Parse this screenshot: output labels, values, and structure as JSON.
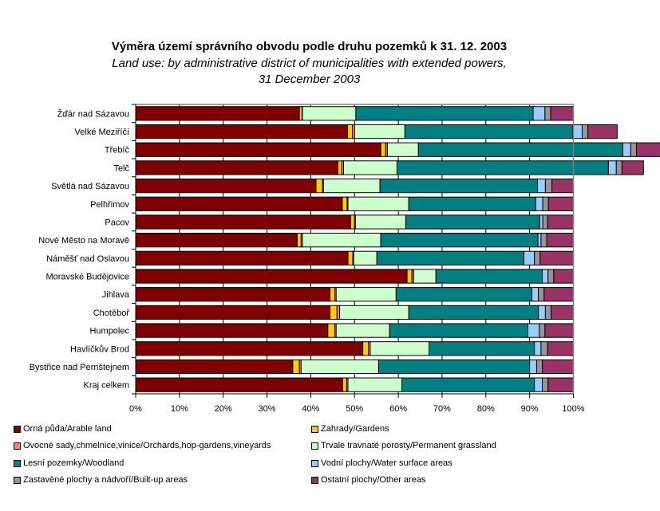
{
  "chart_data": {
    "type": "bar",
    "orientation": "horizontal",
    "stacked": "percent",
    "title": "Výměra území správního obvodu podle druhu pozemků k 31. 12. 2003",
    "subtitle": [
      "Land use: by administrative district of municipalities with extended powers,",
      "31 December 2003"
    ],
    "xlabel": "",
    "ylabel": "",
    "xlim": [
      0,
      100
    ],
    "x_ticks": [
      "0%",
      "10%",
      "20%",
      "30%",
      "40%",
      "50%",
      "60%",
      "70%",
      "80%",
      "90%",
      "100%"
    ],
    "grid": true,
    "legend_position": "bottom",
    "categories": [
      "Žďár nad Sázavou",
      "Velké Meziříčí",
      "Třebíč",
      "Telč",
      "Světlá nad Sázavou",
      "Pelhřimov",
      "Pacov",
      "Nové Město na Moravě",
      "Náměšť nad Oslavou",
      "Moravské Budějovice",
      "Jihlava",
      "Chotěboř",
      "Humpolec",
      "Havlíčkův Brod",
      "Bystřice nad Pernštejnem",
      "Kraj celkem"
    ],
    "series": [
      {
        "name": "Orná půda/Arable land",
        "color": "#800000",
        "values": [
          37.4,
          48.4,
          56.0,
          46.2,
          41.2,
          47.2,
          49.1,
          36.9,
          48.5,
          62.0,
          44.4,
          44.4,
          43.9,
          51.9,
          35.9,
          47.3
        ]
      },
      {
        "name": "Zahrady/Gardens",
        "color": "#FFCC00",
        "values": [
          0.6,
          1.1,
          1.1,
          0.9,
          1.5,
          1.1,
          0.9,
          0.9,
          1.1,
          1.1,
          1.1,
          1.6,
          1.6,
          1.3,
          1.5,
          0.9
        ]
      },
      {
        "name": "Ovocné sady,chmelnice,vinice/Orchards,hop-gardens,vineyards",
        "color": "#FF8080",
        "values": [
          0.1,
          0.5,
          0.4,
          0.4,
          0.2,
          0.2,
          0.2,
          0.3,
          0.2,
          0.4,
          0.3,
          0.6,
          0.3,
          0.4,
          0.4,
          0.3
        ]
      },
      {
        "name": "Trvale travnaté porosty/Permanent grassland",
        "color": "#CCFFCC",
        "values": [
          12.2,
          11.5,
          7.1,
          12.2,
          12.9,
          13.9,
          11.5,
          17.9,
          5.3,
          5.1,
          13.7,
          15.8,
          12.2,
          13.4,
          17.7,
          12.3
        ]
      },
      {
        "name": "Lesní pozemky/Woodland",
        "color": "#008080",
        "values": [
          40.5,
          38.3,
          46.7,
          48.3,
          36.0,
          29.0,
          30.6,
          35.9,
          33.6,
          24.3,
          31.0,
          29.6,
          31.6,
          24.1,
          34.5,
          30.3
        ]
      },
      {
        "name": "Vodní plochy/Water surface areas",
        "color": "#99CCFF",
        "values": [
          2.7,
          2.2,
          1.8,
          1.8,
          1.8,
          1.6,
          0.7,
          0.7,
          2.4,
          1.3,
          1.5,
          1.6,
          2.6,
          1.5,
          1.6,
          1.8
        ]
      },
      {
        "name": "Zastavěné plochy a nádvoří/Built-up areas",
        "color": "#969696",
        "values": [
          1.3,
          1.3,
          1.3,
          1.3,
          1.5,
          1.3,
          1.1,
          1.3,
          1.3,
          1.3,
          1.3,
          1.3,
          1.3,
          1.5,
          1.3,
          1.3
        ]
      },
      {
        "name": "Ostatní plochy/Other areas",
        "color": "#993366",
        "values": [
          5.2,
          6.7,
          5.6,
          4.9,
          4.9,
          5.7,
          5.9,
          6.1,
          7.6,
          4.5,
          6.7,
          5.1,
          6.5,
          5.9,
          7.1,
          5.8
        ]
      }
    ]
  },
  "legend": {
    "items": [
      {
        "label": "Orná půda/Arable land",
        "color": "#800000"
      },
      {
        "label": "Zahrady/Gardens",
        "color": "#FFCC00"
      },
      {
        "label": "Ovocné sady,chmelnice,vinice/Orchards,hop-gardens,vineyards",
        "color": "#FF8080"
      },
      {
        "label": "Trvale travnaté porosty/Permanent grassland",
        "color": "#CCFFCC"
      },
      {
        "label": "Lesní pozemky/Woodland",
        "color": "#008080"
      },
      {
        "label": "Vodní plochy/Water surface areas",
        "color": "#99CCFF"
      },
      {
        "label": "Zastavěné plochy a nádvoří/Built-up areas",
        "color": "#969696"
      },
      {
        "label": "Ostatní plochy/Other areas",
        "color": "#993366"
      }
    ]
  }
}
